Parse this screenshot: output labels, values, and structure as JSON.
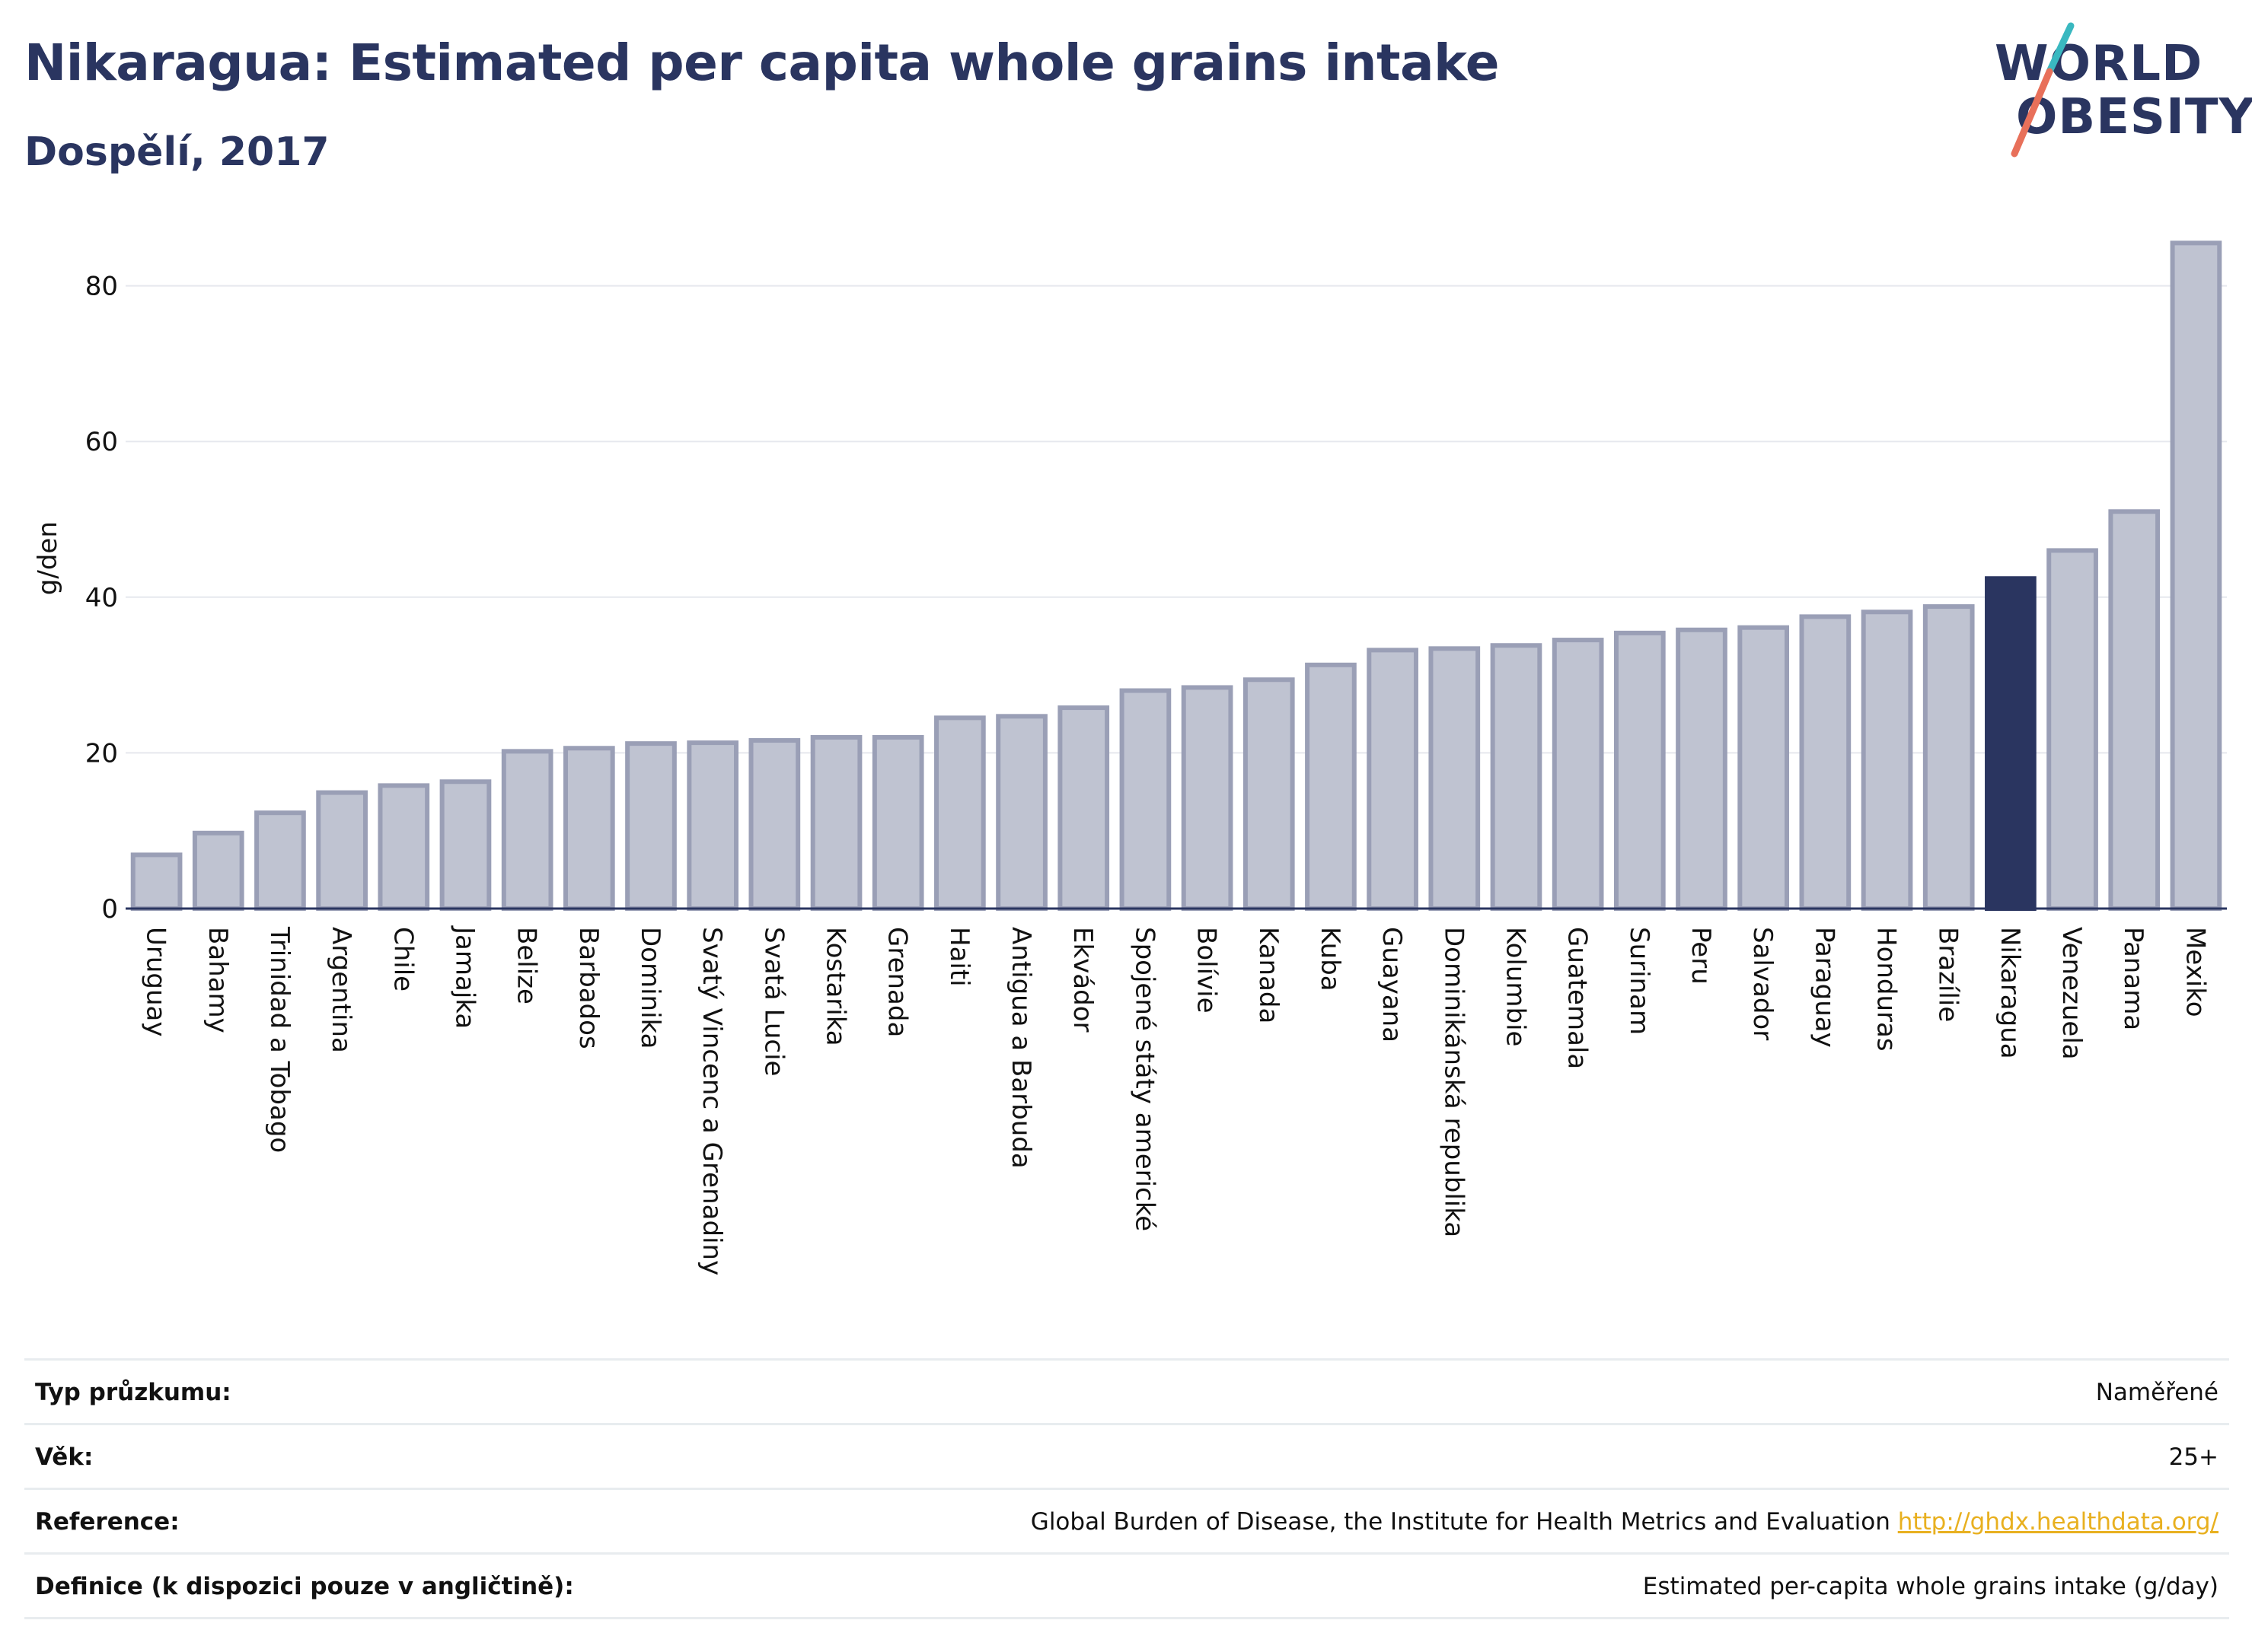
{
  "header": {
    "title": "Nikaragua: Estimated per capita whole grains intake",
    "subtitle": "Dospělí, 2017"
  },
  "logo": {
    "line1": "WORLD",
    "line2": "OBESITY",
    "colors": {
      "text": "#2a3560",
      "accent_teal": "#3ab8c0",
      "accent_coral": "#e8705a"
    }
  },
  "colors": {
    "bar_default": "#bfc3d1",
    "bar_border": "#9a9fb6",
    "bar_highlight": "#2a3560",
    "grid": "#e6e8ee",
    "axis": "#2a3560"
  },
  "chart_data": {
    "type": "bar",
    "title": "Nikaragua: Estimated per capita whole grains intake",
    "subtitle": "Dospělí, 2017",
    "ylabel": "g/den",
    "xlabel": "",
    "ylim": [
      0,
      88
    ],
    "yticks": [
      0,
      20,
      40,
      60,
      80
    ],
    "grid": true,
    "highlight": "Nikaragua",
    "categories": [
      "Uruguay",
      "Bahamy",
      "Trinidad a Tobago",
      "Argentina",
      "Chile",
      "Jamajka",
      "Belize",
      "Barbados",
      "Dominika",
      "Svatý Vincenc a Grenadiny",
      "Svatá Lucie",
      "Kostarika",
      "Grenada",
      "Haiti",
      "Antigua a Barbuda",
      "Ekvádor",
      "Spojené státy americké",
      "Bolívie",
      "Kanada",
      "Kuba",
      "Guayana",
      "Dominikánská republika",
      "Kolumbie",
      "Guatemala",
      "Surinam",
      "Peru",
      "Salvador",
      "Paraguay",
      "Honduras",
      "Brazílie",
      "Nikaragua",
      "Venezuela",
      "Panama",
      "Mexiko"
    ],
    "values": [
      6.9,
      9.7,
      12.3,
      14.9,
      15.8,
      16.3,
      20.2,
      20.6,
      21.2,
      21.3,
      21.6,
      22.0,
      22.0,
      24.5,
      24.7,
      25.8,
      28.0,
      28.4,
      29.4,
      31.3,
      33.2,
      33.4,
      33.8,
      34.5,
      35.4,
      35.8,
      36.1,
      37.5,
      38.1,
      38.8,
      42.4,
      46.0,
      51.0,
      85.5
    ]
  },
  "info_table": [
    {
      "label": "Typ průzkumu:",
      "value": "Naměřené",
      "link": ""
    },
    {
      "label": "Věk:",
      "value": "25+",
      "link": ""
    },
    {
      "label": "Reference:",
      "value": "Global Burden of Disease, the Institute for Health Metrics and Evaluation",
      "link": "http://ghdx.healthdata.org/"
    },
    {
      "label": "Definice (k dispozici pouze v angličtině):",
      "value": "Estimated per-capita whole grains intake (g/day)",
      "link": ""
    }
  ]
}
